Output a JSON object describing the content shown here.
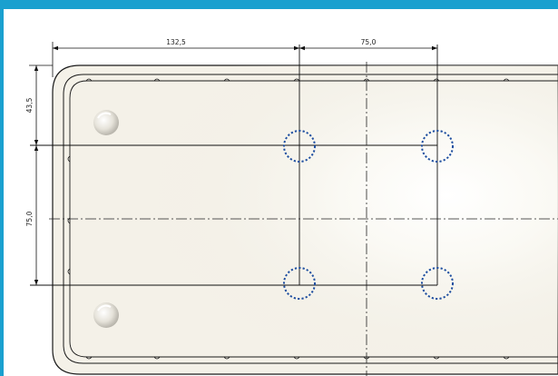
{
  "colors": {
    "frame": "#1aa0cf",
    "paper": "#ffffff",
    "plate": "#f4f1e8",
    "line": "#111111",
    "hole": "#1f4fa0"
  },
  "dimensions": {
    "horizontal_1": "132,5",
    "horizontal_2": "75,0",
    "vertical_1": "43,5",
    "vertical_2": "75,0"
  }
}
